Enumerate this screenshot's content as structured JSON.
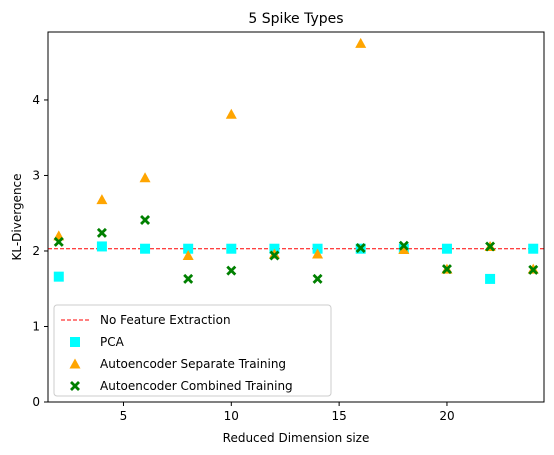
{
  "chart_data": {
    "type": "scatter",
    "title": "5 Spike Types",
    "xlabel": "Reduced Dimension size",
    "ylabel": "KL-Divergence",
    "xlim": [
      1.5,
      24.5
    ],
    "ylim": [
      0,
      4.9
    ],
    "xticks": [
      5,
      10,
      15,
      20
    ],
    "yticks": [
      0,
      1,
      2,
      3,
      4
    ],
    "grid": false,
    "legend_position": "lower-left",
    "reference_line": {
      "name": "No Feature Extraction",
      "y": 2.03,
      "style": "dashed",
      "color": "#ff0000"
    },
    "series": [
      {
        "name": "PCA",
        "marker": "square",
        "color": "#00ffff",
        "x": [
          2,
          4,
          6,
          8,
          10,
          12,
          14,
          16,
          18,
          20,
          22,
          24
        ],
        "y": [
          1.66,
          2.06,
          2.03,
          2.03,
          2.03,
          2.03,
          2.03,
          2.03,
          2.03,
          2.03,
          1.63,
          2.03
        ]
      },
      {
        "name": "Autoencoder Separate Training",
        "marker": "triangle",
        "color": "#ffa500",
        "x": [
          2,
          4,
          6,
          8,
          10,
          12,
          14,
          16,
          18,
          20,
          22,
          24
        ],
        "y": [
          2.2,
          2.68,
          2.97,
          1.94,
          3.81,
          1.96,
          1.96,
          4.75,
          2.02,
          1.76,
          2.06,
          1.76
        ]
      },
      {
        "name": "Autoencoder Combined Training",
        "marker": "x",
        "color": "#008000",
        "x": [
          2,
          4,
          6,
          8,
          10,
          12,
          14,
          16,
          18,
          20,
          22,
          24
        ],
        "y": [
          2.12,
          2.24,
          2.41,
          1.63,
          1.74,
          1.94,
          1.63,
          2.04,
          2.07,
          1.76,
          2.06,
          1.75
        ]
      }
    ]
  }
}
